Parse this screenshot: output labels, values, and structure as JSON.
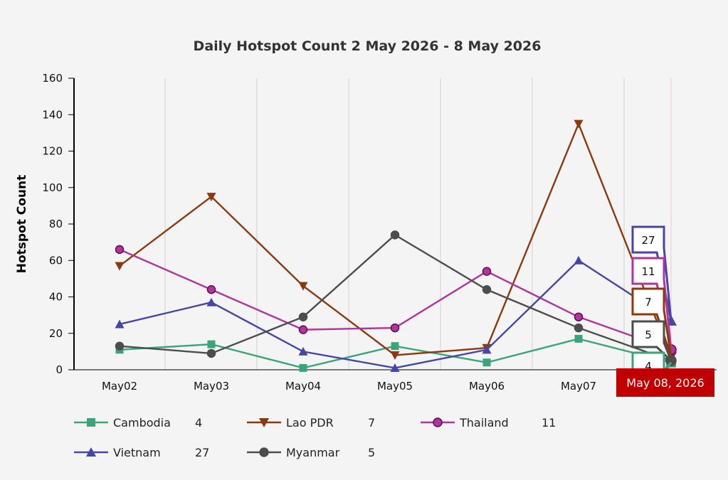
{
  "chart_data": {
    "type": "line",
    "title": "Daily Hotspot Count 2 May 2026 - 8 May 2026",
    "xlabel": "",
    "ylabel": "Hotspot Count",
    "ylim": [
      0,
      160
    ],
    "yticks": [
      0,
      20,
      40,
      60,
      80,
      100,
      120,
      140,
      160
    ],
    "categories": [
      "May02",
      "May03",
      "May04",
      "May05",
      "May06",
      "May07",
      "May 08, 2026"
    ],
    "grid": "vertical",
    "legend_position": "bottom",
    "highlighted_category": "May 08, 2026",
    "series": [
      {
        "name": "Cambodia",
        "color": "#3aa57a",
        "marker": "square",
        "values": [
          11,
          14,
          1,
          13,
          4,
          17,
          4
        ],
        "last_value": "4"
      },
      {
        "name": "Lao PDR",
        "color": "#8b3a0e",
        "marker": "triangle-down",
        "values": [
          57,
          95,
          46,
          8,
          12,
          135,
          7
        ],
        "last_value": "7"
      },
      {
        "name": "Thailand",
        "color": "#b0359c",
        "marker": "circle",
        "values": [
          66,
          44,
          22,
          23,
          54,
          29,
          11
        ],
        "last_value": "11"
      },
      {
        "name": "Vietnam",
        "color": "#4646a6",
        "marker": "triangle-up",
        "values": [
          25,
          37,
          10,
          1,
          11,
          60,
          27
        ],
        "last_value": "27"
      },
      {
        "name": "Myanmar",
        "color": "#4d4d4d",
        "marker": "circle",
        "values": [
          13,
          9,
          29,
          74,
          44,
          23,
          5
        ],
        "last_value": "5"
      }
    ]
  },
  "colors": {
    "highlight_badge": "#c00000",
    "axis": "#000000",
    "grid": "#d0d0d0"
  }
}
